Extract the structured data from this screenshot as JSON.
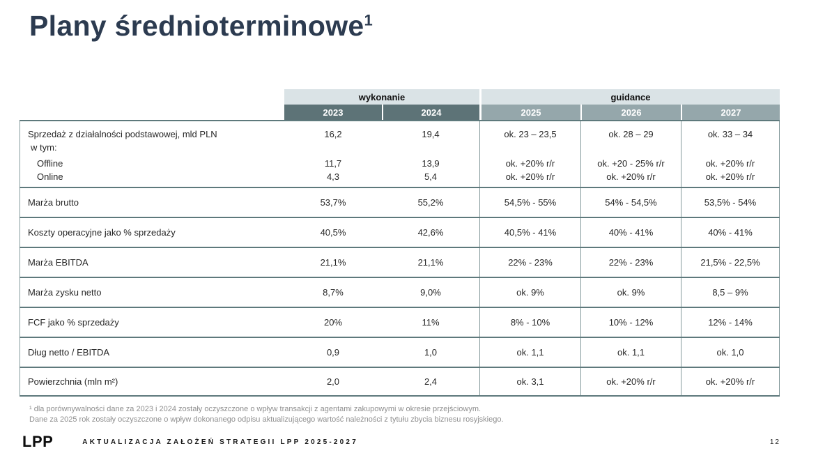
{
  "slide": {
    "title": {
      "text": "Plany średnioterminowe",
      "sup": "1"
    }
  },
  "colors": {
    "title": "#2c3b50",
    "text": "#262626",
    "band_light": "#dae3e6",
    "band_dark": "#5d7377",
    "band_medium": "#95a7ab",
    "grid_h": "#5e797c",
    "grid_v": "#84999b",
    "footnote": "#8f8f8f"
  },
  "table": {
    "group_headers": [
      {
        "label": "wykonanie"
      },
      {
        "label": "guidance"
      }
    ],
    "years": [
      "2023",
      "2024",
      "2025",
      "2026",
      "2027"
    ],
    "sales_row": {
      "label_lines": [
        "Sprzedaż z działalności podstawowej, mld PLN",
        "w tym:",
        "Offline",
        "Online"
      ],
      "columns": [
        [
          "16,2",
          "",
          "11,7",
          "4,3"
        ],
        [
          "19,4",
          "",
          "13,9",
          "5,4"
        ],
        [
          "ok. 23 – 23,5",
          "",
          "ok. +20% r/r",
          "ok. +20% r/r"
        ],
        [
          "ok. 28 – 29",
          "",
          "ok. +20 - 25% r/r",
          "ok. +20% r/r"
        ],
        [
          "ok. 33 – 34",
          "",
          "ok. +20% r/r",
          "ok. +20% r/r"
        ]
      ]
    },
    "rows": [
      {
        "label": "Marża brutto",
        "values": [
          "53,7%",
          "55,2%",
          "54,5% - 55%",
          "54% - 54,5%",
          "53,5% - 54%"
        ]
      },
      {
        "label": "Koszty operacyjne jako % sprzedaży",
        "values": [
          "40,5%",
          "42,6%",
          "40,5% - 41%",
          "40% - 41%",
          "40% - 41%"
        ]
      },
      {
        "label": "Marża EBITDA",
        "values": [
          "21,1%",
          "21,1%",
          "22% - 23%",
          "22% - 23%",
          "21,5% - 22,5%"
        ]
      },
      {
        "label": "Marża zysku netto",
        "values": [
          "8,7%",
          "9,0%",
          "ok. 9%",
          "ok. 9%",
          "8,5 – 9%"
        ]
      },
      {
        "label": "FCF jako % sprzedaży",
        "values": [
          "20%",
          "11%",
          "8% - 10%",
          "10% - 12%",
          "12% - 14%"
        ]
      },
      {
        "label": "Dług netto / EBITDA",
        "values": [
          "0,9",
          "1,0",
          "ok. 1,1",
          "ok. 1,1",
          "ok. 1,0"
        ]
      },
      {
        "label": "Powierzchnia (mln m²)",
        "values": [
          "2,0",
          "2,4",
          "ok. 3,1",
          "ok. +20% r/r",
          "ok. +20% r/r"
        ]
      }
    ]
  },
  "footnote": {
    "lines": [
      "¹ dla porównywalności dane za 2023 i 2024 zostały oczyszczone o wpływ transakcji z agentami zakupowymi w okresie przejściowym.",
      "Dane za 2025 rok zostały oczyszczone o wpływ dokonanego odpisu aktualizującego wartość należności z tytułu zbycia biznesu rosyjskiego."
    ]
  },
  "footer": {
    "logo": "LPP",
    "text": "AKTUALIZACJA ZAŁOŻEŃ STRATEGII LPP 2025-2027",
    "page": "12"
  }
}
